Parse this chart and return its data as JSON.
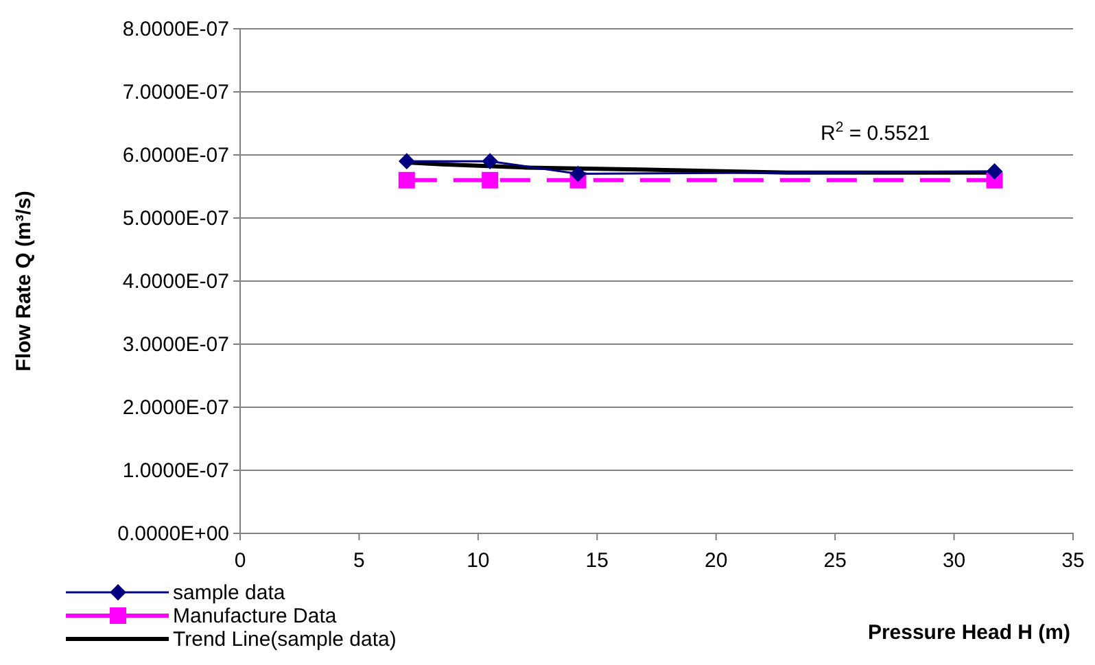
{
  "chart_data": {
    "type": "line",
    "xlabel": "Pressure Head H (m)",
    "ylabel": "Flow Rate Q (m³/s)",
    "xlim": [
      0,
      35
    ],
    "xticks": [
      0,
      5,
      10,
      15,
      20,
      25,
      30,
      35
    ],
    "ylim": [
      0,
      8e-07
    ],
    "yticks": [
      {
        "value": 0,
        "label": "0.0000E+00"
      },
      {
        "value": 1e-07,
        "label": "1.0000E-07"
      },
      {
        "value": 2e-07,
        "label": "2.0000E-07"
      },
      {
        "value": 3e-07,
        "label": "3.0000E-07"
      },
      {
        "value": 4e-07,
        "label": "4.0000E-07"
      },
      {
        "value": 5e-07,
        "label": "5.0000E-07"
      },
      {
        "value": 6e-07,
        "label": "6.0000E-07"
      },
      {
        "value": 7e-07,
        "label": "7.0000E-07"
      },
      {
        "value": 8e-07,
        "label": "8.0000E-07"
      }
    ],
    "grid": "y",
    "legend": "bottom left",
    "series": [
      {
        "name": "sample data",
        "color": "#000080",
        "marker": "diamond",
        "line_style": "solid",
        "x": [
          7,
          10.5,
          14.2,
          31.7
        ],
        "values": [
          5.9e-07,
          5.9e-07,
          5.7e-07,
          5.74e-07
        ]
      },
      {
        "name": "Manufacture Data",
        "color": "#ff00ff",
        "marker": "square",
        "line_style": "dashed",
        "x": [
          7,
          10.5,
          14.2,
          31.7
        ],
        "values": [
          5.6e-07,
          5.6e-07,
          5.6e-07,
          5.6e-07
        ]
      },
      {
        "name": "Trend Line(sample data)",
        "color": "#000000",
        "marker": "none",
        "line_style": "solid",
        "x": [
          7,
          8.5,
          12,
          16.8,
          23,
          31.7
        ],
        "values": [
          5.88e-07,
          5.85e-07,
          5.8e-07,
          5.77e-07,
          5.72e-07,
          5.72e-07
        ]
      }
    ],
    "annotations": [
      "R$^{2}$ = 0.5521"
    ]
  }
}
